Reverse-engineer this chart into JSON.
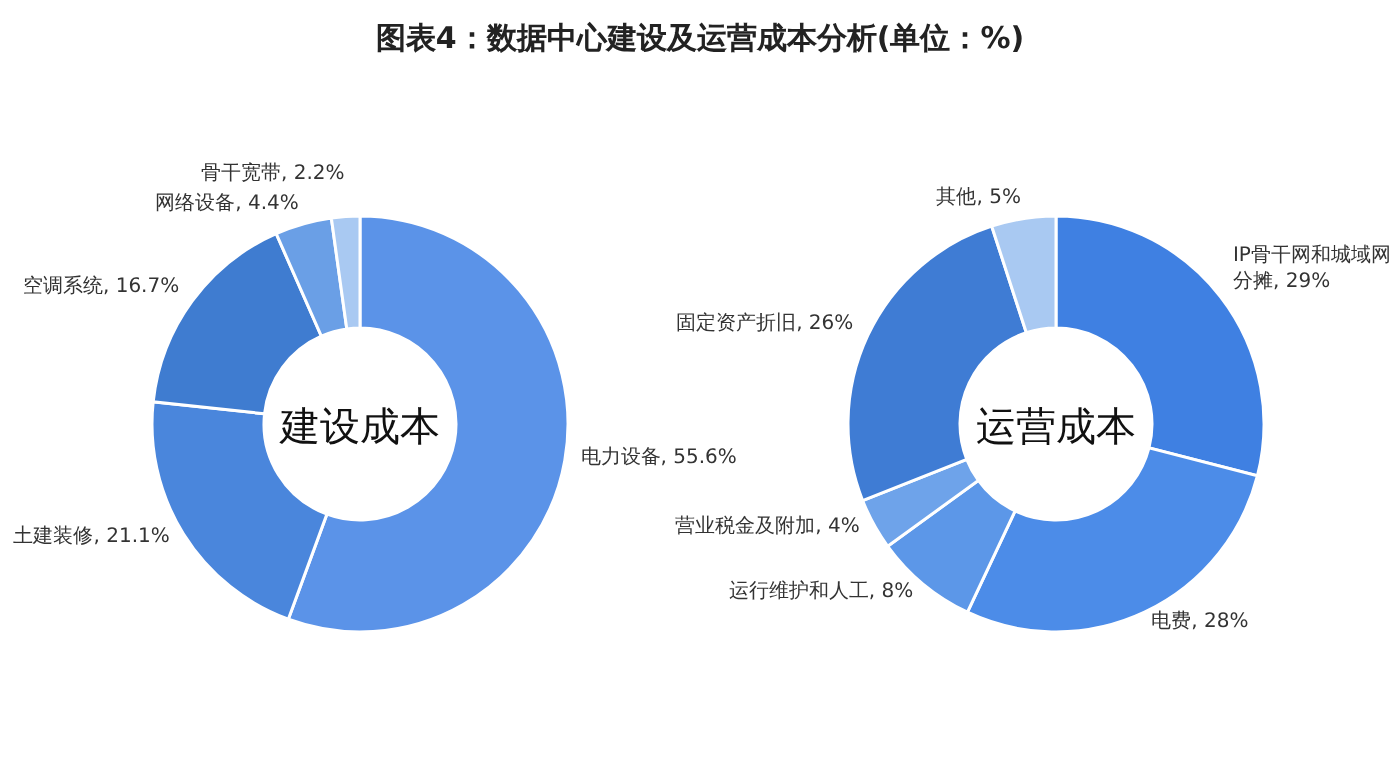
{
  "chart_data": [
    {
      "type": "donut",
      "title": "图表4：数据中心建设及运营成本分析(单位：%)",
      "annotations": [
        "建设成本"
      ],
      "categories": [
        "电力设备",
        "土建装修",
        "空调系统",
        "网络设备",
        "骨干宽带"
      ],
      "values": [
        55.6,
        21.1,
        16.7,
        4.4,
        2.2
      ],
      "value_labels": [
        "55.6%",
        "21.1%",
        "16.7%",
        "4.4%",
        "2.2%"
      ],
      "colors": [
        "#5b93e8",
        "#4a86dc",
        "#3f7cd0",
        "#6a9fe6",
        "#a9c9f2"
      ]
    },
    {
      "type": "donut",
      "annotations": [
        "运营成本"
      ],
      "categories": [
        "IP骨干网和城域网分摊",
        "电费",
        "运行维护和人工",
        "营业税金及附加",
        "固定资产折旧",
        "其他"
      ],
      "values": [
        29,
        28,
        8,
        4,
        26,
        5
      ],
      "value_labels": [
        "29%",
        "28%",
        "8%",
        "4%",
        "26%",
        "5%"
      ],
      "colors": [
        "#3f80e2",
        "#4c8ce8",
        "#5c97e8",
        "#6ea3ea",
        "#3f7cd4",
        "#a9c9f2"
      ]
    }
  ]
}
